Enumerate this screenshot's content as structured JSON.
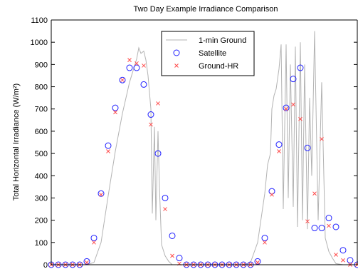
{
  "chart_data": {
    "type": "scatter",
    "title": "Two Day Example Irradiance Comparison",
    "xlabel": "",
    "ylabel": "Total Horizontal Irradiance (W/m²)",
    "ylim": [
      0,
      1100
    ],
    "xlim": [
      0,
      43
    ],
    "yticks": [
      0,
      100,
      200,
      300,
      400,
      500,
      600,
      700,
      800,
      900,
      1000,
      1100
    ],
    "grid": false,
    "legend_position": "top-center",
    "colors": {
      "ground": "#b3b3b3",
      "satellite": "#1f1fff",
      "groundhr": "#ff4a4a",
      "axis": "#000000"
    },
    "series": [
      {
        "name": "1-min Ground",
        "style": "line",
        "x": [
          0,
          1,
          2,
          3,
          4,
          5,
          6,
          7,
          8,
          9,
          10,
          11,
          12,
          12.3,
          12.6,
          13,
          13.3,
          13.6,
          14,
          14.2,
          14.5,
          14.7,
          15,
          15.2,
          15.5,
          16,
          16.5,
          17,
          18,
          19,
          20,
          21,
          22,
          23,
          24,
          25,
          26,
          27,
          28,
          29,
          30,
          30.4,
          30.8,
          31,
          31.3,
          31.6,
          32,
          32.3,
          32.6,
          33,
          33.3,
          33.6,
          34,
          34.3,
          34.6,
          35,
          35.3,
          35.6,
          36,
          36.3,
          36.6,
          37,
          37.5,
          38,
          38.5,
          39,
          39.5,
          40,
          41,
          42,
          43
        ],
        "y": [
          0,
          0,
          0,
          0,
          0,
          0,
          10,
          100,
          310,
          510,
          680,
          820,
          925,
          975,
          950,
          960,
          920,
          850,
          700,
          230,
          620,
          200,
          600,
          350,
          90,
          40,
          15,
          0,
          0,
          0,
          0,
          0,
          0,
          0,
          0,
          0,
          0,
          0,
          10,
          100,
          320,
          450,
          500,
          700,
          760,
          790,
          880,
          990,
          250,
          990,
          300,
          900,
          260,
          980,
          170,
          1000,
          200,
          900,
          160,
          750,
          400,
          1050,
          200,
          820,
          120,
          60,
          30,
          5,
          0,
          0,
          0
        ]
      },
      {
        "name": "Satellite",
        "style": "marker-circle",
        "x": [
          0,
          1,
          2,
          3,
          4,
          5,
          6,
          7,
          8,
          9,
          10,
          11,
          12,
          13,
          14,
          15,
          16,
          17,
          18,
          19,
          20,
          21,
          22,
          23,
          24,
          25,
          26,
          27,
          28,
          29,
          30,
          31,
          32,
          33,
          34,
          35,
          36,
          37,
          38,
          39,
          40,
          41,
          42,
          43
        ],
        "y": [
          0,
          0,
          0,
          0,
          0,
          15,
          120,
          320,
          535,
          705,
          830,
          885,
          885,
          810,
          675,
          500,
          300,
          130,
          30,
          0,
          0,
          0,
          0,
          0,
          0,
          0,
          0,
          0,
          0,
          15,
          120,
          330,
          540,
          705,
          835,
          885,
          525,
          165,
          165,
          210,
          170,
          65,
          20,
          0
        ]
      },
      {
        "name": "Ground-HR",
        "style": "marker-x",
        "x": [
          0,
          1,
          2,
          3,
          4,
          5,
          6,
          7,
          8,
          9,
          10,
          11,
          12,
          13,
          14,
          15,
          16,
          17,
          18,
          19,
          20,
          21,
          22,
          23,
          24,
          25,
          26,
          27,
          28,
          29,
          30,
          31,
          32,
          33,
          34,
          35,
          36,
          37,
          38,
          39,
          40,
          41,
          42,
          43
        ],
        "y": [
          0,
          0,
          0,
          0,
          0,
          10,
          100,
          315,
          510,
          685,
          830,
          920,
          905,
          895,
          630,
          725,
          250,
          40,
          5,
          0,
          0,
          0,
          0,
          0,
          0,
          0,
          0,
          0,
          0,
          10,
          100,
          315,
          510,
          700,
          720,
          655,
          195,
          320,
          565,
          175,
          45,
          20,
          0,
          0
        ]
      }
    ]
  }
}
